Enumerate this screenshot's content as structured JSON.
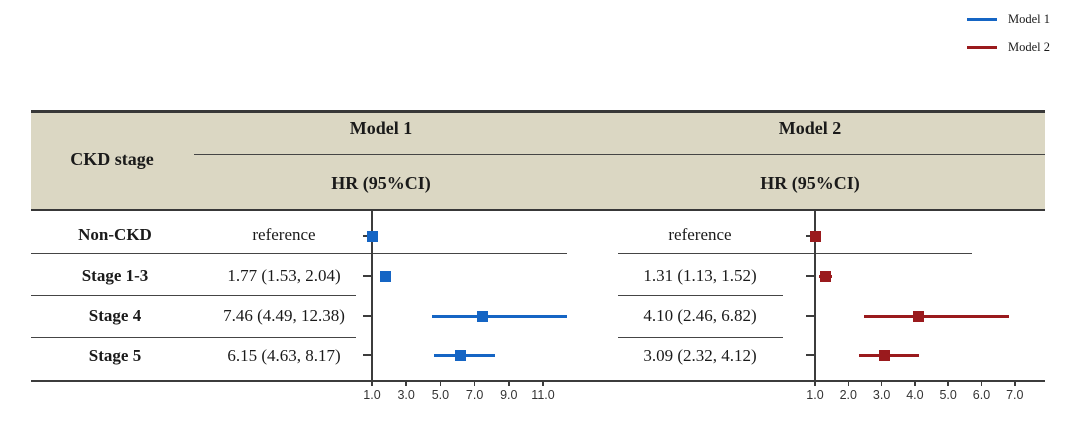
{
  "legend": {
    "items": [
      {
        "label": "Model 1",
        "color": "#1565C4"
      },
      {
        "label": "Model 2",
        "color": "#9A1A1D"
      }
    ]
  },
  "table": {
    "stage_header": "CKD stage",
    "groups": [
      {
        "title": "Model 1",
        "subtitle": "HR (95%CI)"
      },
      {
        "title": "Model 2",
        "subtitle": "HR (95%CI)"
      }
    ],
    "rows": [
      {
        "stage": "Non-CKD",
        "model1": "reference",
        "model2": "reference"
      },
      {
        "stage": "Stage 1-3",
        "model1": "1.77 (1.53, 2.04)",
        "model2": "1.31 (1.13, 1.52)"
      },
      {
        "stage": "Stage 4",
        "model1": "7.46 (4.49, 12.38)",
        "model2": "4.10 (2.46, 6.82)"
      },
      {
        "stage": "Stage 5",
        "model1": "6.15 (4.63, 8.17)",
        "model2": "3.09 (2.32, 4.12)"
      }
    ]
  },
  "chart_data": [
    {
      "type": "scatter",
      "chart_style": "forest-plot",
      "name": "Model 1",
      "color": "#1565C4",
      "categories": [
        "Non-CKD",
        "Stage 1-3",
        "Stage 4",
        "Stage 5"
      ],
      "hr": [
        1.0,
        1.77,
        7.46,
        6.15
      ],
      "ci_low": [
        null,
        1.53,
        4.49,
        4.63
      ],
      "ci_high": [
        null,
        2.04,
        12.38,
        8.17
      ],
      "reference_line": 1.0,
      "x_ticks": [
        1.0,
        3.0,
        5.0,
        7.0,
        9.0,
        11.0
      ],
      "x_tick_labels": [
        "1.0",
        "3.0",
        "5.0",
        "7.0",
        "9.0",
        "11.0"
      ],
      "xlim": [
        1.0,
        12.7
      ],
      "xlabel": "",
      "ylabel": ""
    },
    {
      "type": "scatter",
      "chart_style": "forest-plot",
      "name": "Model 2",
      "color": "#9A1A1D",
      "categories": [
        "Non-CKD",
        "Stage 1-3",
        "Stage 4",
        "Stage 5"
      ],
      "hr": [
        1.0,
        1.31,
        4.1,
        3.09
      ],
      "ci_low": [
        null,
        1.13,
        2.46,
        2.32
      ],
      "ci_high": [
        null,
        1.52,
        6.82,
        4.12
      ],
      "reference_line": 1.0,
      "x_ticks": [
        1.0,
        2.0,
        3.0,
        4.0,
        5.0,
        6.0,
        7.0
      ],
      "x_tick_labels": [
        "1.0",
        "2.0",
        "3.0",
        "4.0",
        "5.0",
        "6.0",
        "7.0"
      ],
      "xlim": [
        1.0,
        7.3
      ],
      "xlabel": "",
      "ylabel": ""
    }
  ]
}
